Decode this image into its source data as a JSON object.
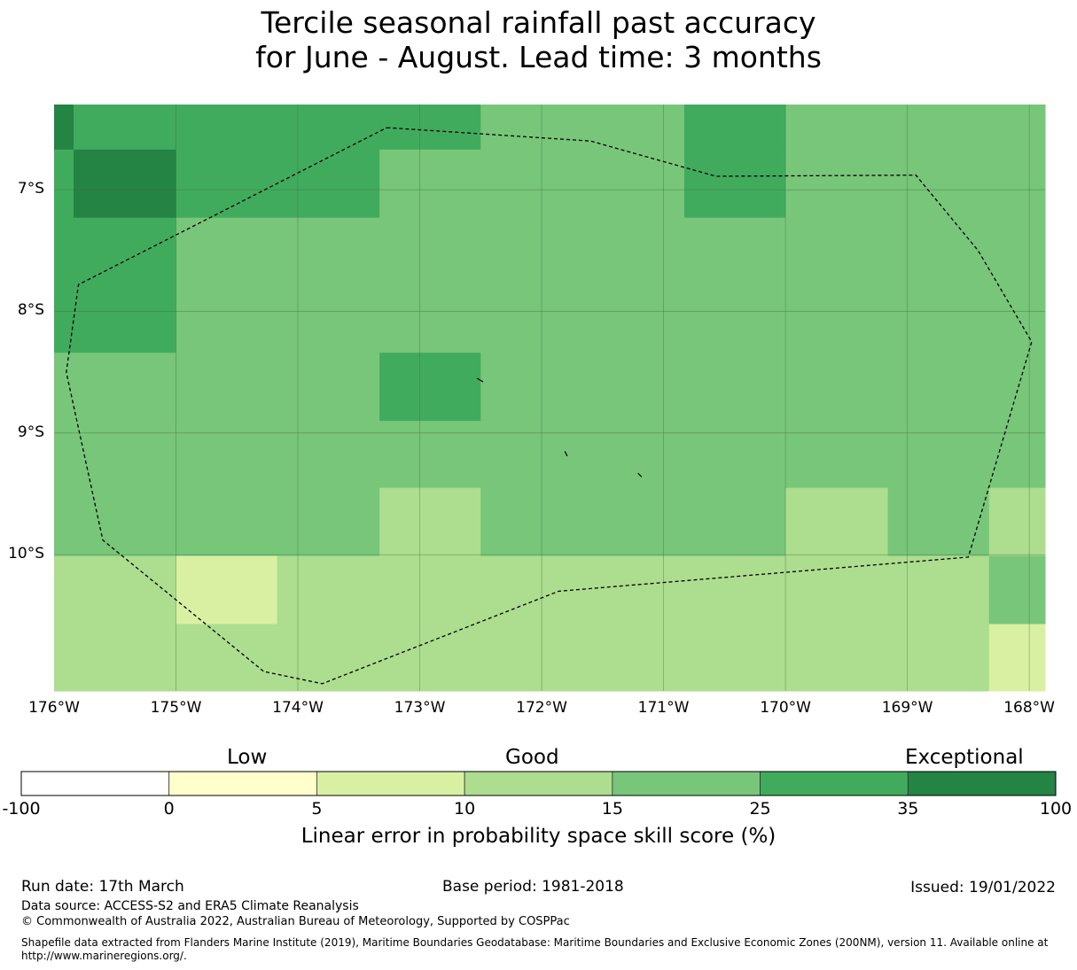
{
  "title": {
    "line1": "Tercile seasonal rainfall past accuracy",
    "line2": "for June - August. Lead time: 3 months"
  },
  "map": {
    "lon_range": [
      -176,
      -167.87
    ],
    "lat_range": [
      -11.12,
      -6.3
    ],
    "lon_labels": [
      "176°W",
      "175°W",
      "174°W",
      "173°W",
      "172°W",
      "171°W",
      "170°W",
      "169°W",
      "168°W"
    ],
    "lat_labels": [
      "7°S",
      "8°S",
      "9°S",
      "10°S"
    ],
    "grid_cells_lon_edges": [
      -176,
      -175.84,
      -175.0,
      -174.17,
      -173.33,
      -172.5,
      -171.66,
      -170.83,
      -170.0,
      -169.16,
      -168.33,
      -167.87
    ],
    "grid_cells_lat_edges": [
      -6.3,
      -6.67,
      -7.23,
      -8.34,
      -8.9,
      -9.45,
      -10.01,
      -10.57,
      -11.12
    ],
    "skill_classes": [
      [
        6,
        5,
        5,
        5,
        5,
        4,
        4,
        5,
        4,
        4,
        4
      ],
      [
        5,
        6,
        5,
        5,
        4,
        4,
        4,
        5,
        4,
        4,
        4
      ],
      [
        5,
        5,
        4,
        4,
        4,
        4,
        4,
        4,
        4,
        4,
        4
      ],
      [
        4,
        4,
        4,
        4,
        5,
        4,
        4,
        4,
        4,
        4,
        4
      ],
      [
        4,
        4,
        4,
        4,
        4,
        4,
        4,
        4,
        4,
        4,
        4
      ],
      [
        4,
        4,
        4,
        4,
        3,
        4,
        4,
        4,
        3,
        4,
        3
      ],
      [
        3,
        3,
        2,
        3,
        3,
        3,
        3,
        3,
        3,
        3,
        4
      ],
      [
        3,
        3,
        3,
        3,
        3,
        3,
        3,
        3,
        3,
        3,
        2
      ]
    ],
    "eez_boundary": [
      [
        -173.27,
        -6.49
      ],
      [
        -171.6,
        -6.6
      ],
      [
        -170.57,
        -6.89
      ],
      [
        -168.93,
        -6.88
      ],
      [
        -168.42,
        -7.5
      ],
      [
        -167.98,
        -8.25
      ],
      [
        -168.5,
        -10.02
      ],
      [
        -171.86,
        -10.3
      ],
      [
        -173.8,
        -11.06
      ],
      [
        -174.28,
        -10.96
      ],
      [
        -175.6,
        -9.88
      ],
      [
        -175.9,
        -8.5
      ],
      [
        -175.8,
        -7.78
      ],
      [
        -173.27,
        -6.49
      ]
    ]
  },
  "colorbar": {
    "words": [
      "Low",
      "Good",
      "Exceptional"
    ],
    "ticks": [
      "-100",
      "0",
      "5",
      "10",
      "15",
      "25",
      "35",
      "100"
    ],
    "colors": [
      "#ffffff",
      "#ffffcc",
      "#d9f0a3",
      "#addd8e",
      "#78c679",
      "#41ab5d",
      "#238443"
    ],
    "label": "Linear error in probability space skill score (%)"
  },
  "footer": {
    "run_date": "Run date: 17th March",
    "base_period": "Base period: 1981-2018",
    "issued": "Issued: 19/01/2022",
    "data_source": "Data source: ACCESS-S2 and ERA5 Climate Reanalysis",
    "copyright": "© Commonwealth of Australia 2022, Australian Bureau of Meteorology, Supported by COSPPac",
    "shapefile": "Shapefile data extracted from Flanders Marine Institute (2019), Maritime Boundaries Geodatabase: Maritime Boundaries and Exclusive Economic Zones (200NM), version 11. Available online at http://www.marineregions.org/."
  }
}
